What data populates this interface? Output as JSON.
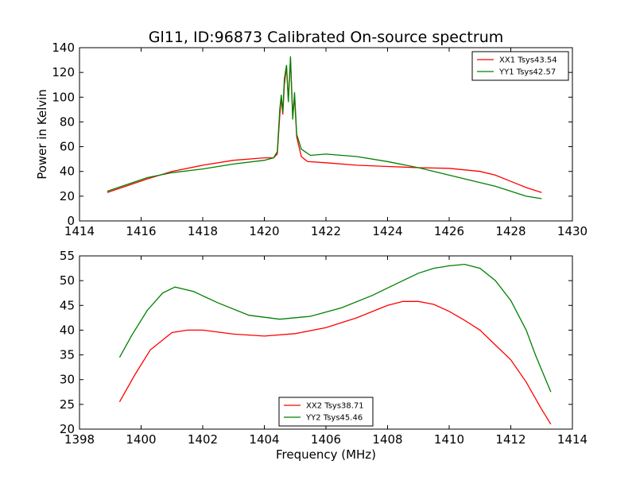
{
  "figure_title": "Gl11, ID:96873 Calibrated On-source spectrum",
  "xlabel": "Frequency (MHz)",
  "colors": {
    "red": "#ff0000",
    "green": "#008000",
    "axis": "#000000"
  },
  "chart_data": [
    {
      "type": "line",
      "ylabel": "Power in Kelvin",
      "xlim": [
        1414,
        1430
      ],
      "ylim": [
        0,
        140
      ],
      "xticks": [
        "1414",
        "1416",
        "1418",
        "1420",
        "1422",
        "1424",
        "1426",
        "1428",
        "1430"
      ],
      "yticks": [
        "0",
        "20",
        "40",
        "60",
        "80",
        "100",
        "120",
        "140"
      ],
      "legend_position": "top-right",
      "series": [
        {
          "name": "XX1 Tsys43.54",
          "color": "#ff0000",
          "points": [
            [
              1414.9,
              23
            ],
            [
              1415.5,
              28
            ],
            [
              1416.2,
              34
            ],
            [
              1417.0,
              40
            ],
            [
              1418.0,
              45
            ],
            [
              1419.0,
              49
            ],
            [
              1420.0,
              51
            ],
            [
              1420.3,
              51
            ],
            [
              1420.42,
              54
            ],
            [
              1420.5,
              85
            ],
            [
              1420.55,
              100
            ],
            [
              1420.6,
              86
            ],
            [
              1420.65,
              110
            ],
            [
              1420.72,
              125
            ],
            [
              1420.78,
              98
            ],
            [
              1420.85,
              130
            ],
            [
              1420.92,
              85
            ],
            [
              1420.98,
              100
            ],
            [
              1421.05,
              68
            ],
            [
              1421.2,
              52
            ],
            [
              1421.4,
              48
            ],
            [
              1422.0,
              47
            ],
            [
              1423.0,
              45
            ],
            [
              1424.0,
              44
            ],
            [
              1425.0,
              43
            ],
            [
              1426.0,
              42.5
            ],
            [
              1427.0,
              40
            ],
            [
              1427.5,
              37
            ],
            [
              1428.0,
              32
            ],
            [
              1428.5,
              27
            ],
            [
              1429.0,
              23
            ]
          ]
        },
        {
          "name": "YY1 Tsys42.57",
          "color": "#008000",
          "points": [
            [
              1414.9,
              24
            ],
            [
              1415.5,
              29
            ],
            [
              1416.2,
              35
            ],
            [
              1417.0,
              39
            ],
            [
              1418.0,
              42
            ],
            [
              1419.0,
              46
            ],
            [
              1420.0,
              49
            ],
            [
              1420.3,
              51
            ],
            [
              1420.42,
              56
            ],
            [
              1420.5,
              90
            ],
            [
              1420.55,
              102
            ],
            [
              1420.6,
              88
            ],
            [
              1420.65,
              115
            ],
            [
              1420.72,
              126
            ],
            [
              1420.78,
              96
            ],
            [
              1420.85,
              133
            ],
            [
              1420.92,
              82
            ],
            [
              1420.98,
              104
            ],
            [
              1421.05,
              70
            ],
            [
              1421.2,
              58
            ],
            [
              1421.5,
              53
            ],
            [
              1422.0,
              54
            ],
            [
              1423.0,
              52
            ],
            [
              1424.0,
              48
            ],
            [
              1425.0,
              43
            ],
            [
              1426.0,
              37
            ],
            [
              1427.0,
              31
            ],
            [
              1427.5,
              28
            ],
            [
              1428.0,
              24
            ],
            [
              1428.5,
              20
            ],
            [
              1429.0,
              18
            ]
          ]
        }
      ]
    },
    {
      "type": "line",
      "xlabel": "Frequency (MHz)",
      "xlim": [
        1398,
        1414
      ],
      "ylim": [
        20,
        55
      ],
      "xticks": [
        "1398",
        "1400",
        "1402",
        "1404",
        "1406",
        "1408",
        "1410",
        "1412",
        "1414"
      ],
      "yticks": [
        "20",
        "25",
        "30",
        "35",
        "40",
        "45",
        "50",
        "55"
      ],
      "legend_position": "lower-center",
      "series": [
        {
          "name": "XX2 Tsys38.71",
          "color": "#ff0000",
          "points": [
            [
              1399.3,
              25.5
            ],
            [
              1399.8,
              31
            ],
            [
              1400.3,
              36
            ],
            [
              1401.0,
              39.5
            ],
            [
              1401.5,
              40
            ],
            [
              1402.0,
              40
            ],
            [
              1403.0,
              39.2
            ],
            [
              1404.0,
              38.8
            ],
            [
              1405.0,
              39.3
            ],
            [
              1406.0,
              40.5
            ],
            [
              1407.0,
              42.5
            ],
            [
              1408.0,
              45
            ],
            [
              1408.5,
              45.8
            ],
            [
              1409.0,
              45.8
            ],
            [
              1409.5,
              45.2
            ],
            [
              1410.0,
              43.8
            ],
            [
              1410.5,
              42
            ],
            [
              1411.0,
              40
            ],
            [
              1411.5,
              37
            ],
            [
              1412.0,
              34
            ],
            [
              1412.5,
              29.5
            ],
            [
              1413.0,
              24
            ],
            [
              1413.3,
              21
            ]
          ]
        },
        {
          "name": "YY2 Tsys45.46",
          "color": "#008000",
          "points": [
            [
              1399.3,
              34.5
            ],
            [
              1399.7,
              39
            ],
            [
              1400.2,
              44
            ],
            [
              1400.7,
              47.5
            ],
            [
              1401.1,
              48.7
            ],
            [
              1401.7,
              47.8
            ],
            [
              1402.5,
              45.5
            ],
            [
              1403.5,
              43
            ],
            [
              1404.5,
              42.2
            ],
            [
              1405.5,
              42.8
            ],
            [
              1406.5,
              44.5
            ],
            [
              1407.5,
              47
            ],
            [
              1408.5,
              50
            ],
            [
              1409.0,
              51.5
            ],
            [
              1409.5,
              52.5
            ],
            [
              1410.0,
              53
            ],
            [
              1410.5,
              53.3
            ],
            [
              1411.0,
              52.5
            ],
            [
              1411.5,
              50
            ],
            [
              1412.0,
              46
            ],
            [
              1412.5,
              40
            ],
            [
              1412.8,
              35
            ],
            [
              1413.3,
              27.5
            ]
          ]
        }
      ]
    }
  ]
}
